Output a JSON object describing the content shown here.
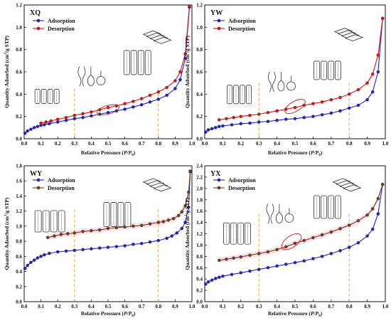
{
  "figure": {
    "xlabel_prefix": "Relative Pressure (",
    "xlabel_italic": "P/P",
    "xlabel_sub": "0",
    "xlabel_suffix": ")",
    "ylabel_prefix": "Quantity Adsorbed (cm",
    "ylabel_sup": "3",
    "ylabel_suffix": "/g STP)",
    "colors": {
      "adsorption": "#1f1fd6",
      "desorption_XQ_YW": "#e01010",
      "desorption_WY_YX": "#7a3b14",
      "guide": "#e0a030",
      "ellipse": "#d81818"
    }
  },
  "chart_data": [
    {
      "type": "line",
      "panel": "XQ",
      "xlim": [
        0.0,
        1.0
      ],
      "ylim": [
        0.0,
        1.2
      ],
      "x_ticks": [
        "0.0",
        "0.1",
        "0.2",
        "0.3",
        "0.4",
        "0.5",
        "0.6",
        "0.7",
        "0.8",
        "0.9",
        "1.0"
      ],
      "y_ticks": [
        "0.0",
        "0.2",
        "0.4",
        "0.6",
        "0.8",
        "1.0",
        "1.2"
      ],
      "legend": [
        "Adsorption",
        "Desorption"
      ],
      "series": [
        {
          "name": "Adsorption",
          "x": [
            0.005,
            0.02,
            0.04,
            0.06,
            0.08,
            0.1,
            0.12,
            0.15,
            0.2,
            0.25,
            0.3,
            0.35,
            0.4,
            0.45,
            0.5,
            0.55,
            0.6,
            0.65,
            0.7,
            0.75,
            0.8,
            0.85,
            0.9,
            0.93,
            0.96,
            0.985
          ],
          "y": [
            0.05,
            0.07,
            0.085,
            0.1,
            0.11,
            0.12,
            0.125,
            0.135,
            0.15,
            0.165,
            0.18,
            0.19,
            0.205,
            0.22,
            0.235,
            0.25,
            0.265,
            0.285,
            0.305,
            0.33,
            0.355,
            0.39,
            0.45,
            0.53,
            0.72,
            1.18
          ]
        },
        {
          "name": "Desorption",
          "x": [
            0.1,
            0.13,
            0.16,
            0.2,
            0.25,
            0.3,
            0.35,
            0.4,
            0.45,
            0.5,
            0.55,
            0.6,
            0.65,
            0.7,
            0.75,
            0.8,
            0.85,
            0.9,
            0.93,
            0.96,
            0.985
          ],
          "y": [
            0.14,
            0.15,
            0.16,
            0.175,
            0.19,
            0.21,
            0.225,
            0.24,
            0.26,
            0.28,
            0.295,
            0.315,
            0.335,
            0.36,
            0.39,
            0.42,
            0.46,
            0.52,
            0.6,
            0.76,
            1.19
          ]
        }
      ]
    },
    {
      "type": "line",
      "panel": "YW",
      "xlim": [
        0.0,
        1.0
      ],
      "ylim": [
        0.0,
        1.2
      ],
      "x_ticks": [
        "0.0",
        "0.1",
        "0.2",
        "0.3",
        "0.4",
        "0.5",
        "0.6",
        "0.7",
        "0.8",
        "0.9",
        "1.0"
      ],
      "y_ticks": [
        "0.0",
        "0.2",
        "0.4",
        "0.6",
        "0.8",
        "1.0",
        "1.2"
      ],
      "legend": [
        "Adsorption",
        "Desorption"
      ],
      "series": [
        {
          "name": "Adsorption",
          "x": [
            0.005,
            0.02,
            0.04,
            0.06,
            0.08,
            0.1,
            0.15,
            0.2,
            0.25,
            0.3,
            0.35,
            0.4,
            0.45,
            0.5,
            0.55,
            0.6,
            0.65,
            0.7,
            0.75,
            0.8,
            0.85,
            0.9,
            0.93,
            0.96,
            0.985
          ],
          "y": [
            0.06,
            0.08,
            0.09,
            0.1,
            0.11,
            0.115,
            0.125,
            0.135,
            0.14,
            0.15,
            0.155,
            0.165,
            0.175,
            0.18,
            0.19,
            0.2,
            0.215,
            0.23,
            0.25,
            0.275,
            0.3,
            0.35,
            0.42,
            0.6,
            1.08
          ]
        },
        {
          "name": "Desorption",
          "x": [
            0.08,
            0.12,
            0.16,
            0.2,
            0.25,
            0.3,
            0.35,
            0.4,
            0.45,
            0.5,
            0.55,
            0.6,
            0.65,
            0.7,
            0.75,
            0.8,
            0.85,
            0.9,
            0.93,
            0.96,
            0.985
          ],
          "y": [
            0.17,
            0.18,
            0.19,
            0.2,
            0.21,
            0.22,
            0.235,
            0.25,
            0.265,
            0.28,
            0.3,
            0.315,
            0.33,
            0.35,
            0.37,
            0.4,
            0.44,
            0.5,
            0.58,
            0.75,
            1.08
          ]
        }
      ]
    },
    {
      "type": "line",
      "panel": "WY",
      "xlim": [
        0.0,
        1.0
      ],
      "ylim": [
        0.0,
        1.8
      ],
      "x_ticks": [
        "0.0",
        "0.1",
        "0.2",
        "0.3",
        "0.4",
        "0.5",
        "0.6",
        "0.7",
        "0.8",
        "0.9",
        "1.0"
      ],
      "y_ticks": [
        "0.0",
        "0.2",
        "0.4",
        "0.6",
        "0.8",
        "1.0",
        "1.2",
        "1.4",
        "1.6",
        "1.8"
      ],
      "legend": [
        "Adsorption",
        "Desorption"
      ],
      "series": [
        {
          "name": "Adsorption",
          "x": [
            0.005,
            0.02,
            0.04,
            0.06,
            0.08,
            0.1,
            0.12,
            0.15,
            0.2,
            0.25,
            0.3,
            0.35,
            0.4,
            0.45,
            0.5,
            0.55,
            0.6,
            0.65,
            0.7,
            0.75,
            0.8,
            0.85,
            0.88,
            0.91,
            0.94,
            0.96,
            0.98,
            0.99
          ],
          "y": [
            0.44,
            0.48,
            0.52,
            0.55,
            0.58,
            0.6,
            0.62,
            0.64,
            0.66,
            0.67,
            0.68,
            0.69,
            0.7,
            0.71,
            0.72,
            0.73,
            0.74,
            0.76,
            0.77,
            0.79,
            0.81,
            0.84,
            0.87,
            0.91,
            0.97,
            1.05,
            1.25,
            1.72
          ]
        },
        {
          "name": "Desorption",
          "x": [
            0.14,
            0.18,
            0.22,
            0.26,
            0.3,
            0.35,
            0.4,
            0.45,
            0.5,
            0.55,
            0.6,
            0.65,
            0.7,
            0.75,
            0.8,
            0.83,
            0.86,
            0.89,
            0.92,
            0.94,
            0.96,
            0.98,
            0.99
          ],
          "y": [
            0.85,
            0.87,
            0.89,
            0.9,
            0.91,
            0.93,
            0.94,
            0.95,
            0.97,
            0.98,
            0.99,
            1.0,
            1.01,
            1.03,
            1.05,
            1.06,
            1.08,
            1.1,
            1.14,
            1.19,
            1.27,
            1.45,
            1.73
          ]
        }
      ]
    },
    {
      "type": "line",
      "panel": "YX",
      "xlim": [
        0.0,
        1.0
      ],
      "ylim": [
        0.0,
        2.4
      ],
      "x_ticks": [
        "0.0",
        "0.1",
        "0.2",
        "0.3",
        "0.4",
        "0.5",
        "0.6",
        "0.7",
        "0.8",
        "0.9",
        "1.0"
      ],
      "y_ticks": [
        "0.0",
        "0.2",
        "0.4",
        "0.6",
        "0.8",
        "1.0",
        "1.2",
        "1.4",
        "1.6",
        "1.8",
        "2.0",
        "2.2",
        "2.4"
      ],
      "legend": [
        "Adsorption",
        "Desorption"
      ],
      "series": [
        {
          "name": "Adsorption",
          "x": [
            0.005,
            0.02,
            0.04,
            0.06,
            0.08,
            0.1,
            0.15,
            0.2,
            0.25,
            0.3,
            0.35,
            0.4,
            0.45,
            0.5,
            0.55,
            0.6,
            0.65,
            0.7,
            0.75,
            0.8,
            0.85,
            0.9,
            0.93,
            0.96,
            0.985
          ],
          "y": [
            0.31,
            0.35,
            0.38,
            0.41,
            0.43,
            0.45,
            0.48,
            0.51,
            0.54,
            0.57,
            0.6,
            0.63,
            0.66,
            0.69,
            0.72,
            0.76,
            0.8,
            0.85,
            0.9,
            0.96,
            1.04,
            1.16,
            1.28,
            1.55,
            2.07
          ]
        },
        {
          "name": "Desorption",
          "x": [
            0.08,
            0.12,
            0.16,
            0.2,
            0.25,
            0.3,
            0.35,
            0.4,
            0.45,
            0.5,
            0.55,
            0.6,
            0.65,
            0.7,
            0.75,
            0.8,
            0.85,
            0.9,
            0.93,
            0.96,
            0.985
          ],
          "y": [
            0.73,
            0.75,
            0.77,
            0.79,
            0.82,
            0.85,
            0.88,
            0.92,
            0.97,
            1.03,
            1.08,
            1.13,
            1.18,
            1.23,
            1.29,
            1.35,
            1.43,
            1.53,
            1.64,
            1.82,
            2.07
          ]
        }
      ]
    }
  ]
}
